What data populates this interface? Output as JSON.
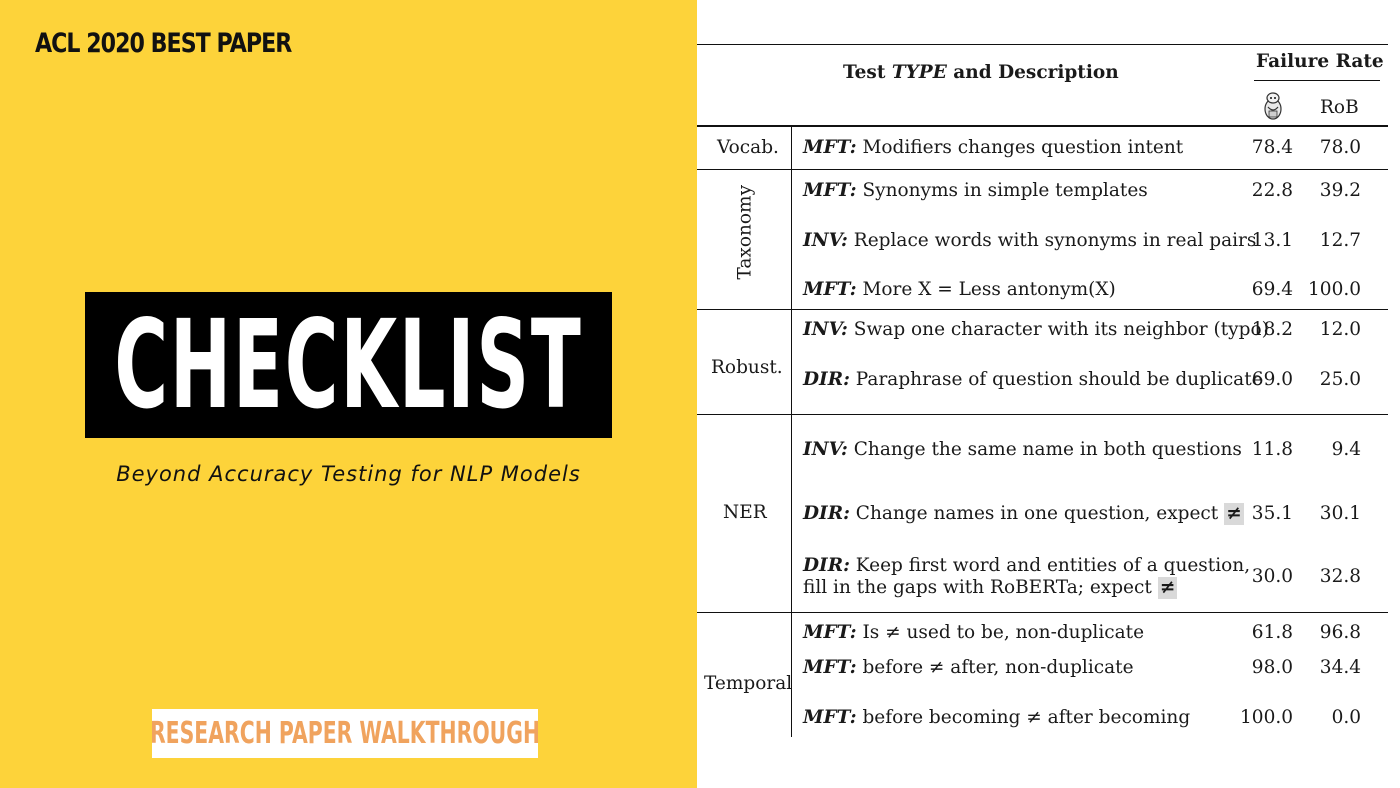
{
  "left": {
    "banner": "ACL 2020 BEST PAPER",
    "title": "CHECKLIST",
    "subtitle": "Beyond Accuracy Testing for NLP Models",
    "walkthrough": "RESEARCH PAPER WALKTHROUGH",
    "colors": {
      "background": "#fdd33a",
      "title_box": "#000000",
      "walkthrough_text": "#f0a35e"
    }
  },
  "table": {
    "header": {
      "test_prefix": "Test",
      "test_type": "TYPE",
      "test_suffix": "and Description",
      "failure_rate": "Failure Rate",
      "col1_icon": "bert-figure-icon",
      "col2": "RoB"
    },
    "groups": [
      {
        "label": "Vocab.",
        "rows": [
          {
            "tag": "MFT:",
            "desc": "Modifiers changes question intent",
            "v1": "78.4",
            "v2": "78.0"
          }
        ]
      },
      {
        "label": "Taxonomy",
        "rows": [
          {
            "tag": "MFT:",
            "desc": "Synonyms in simple templates",
            "v1": "22.8",
            "v2": "39.2"
          },
          {
            "tag": "INV:",
            "desc": "Replace words with synonyms in real pairs",
            "v1": "13.1",
            "v2": "12.7"
          },
          {
            "tag": "MFT:",
            "desc": "More X = Less antonym(X)",
            "v1": "69.4",
            "v2": "100.0"
          }
        ]
      },
      {
        "label": "Robust.",
        "rows": [
          {
            "tag": "INV:",
            "desc": "Swap one character with its neighbor (typo)",
            "v1": "18.2",
            "v2": "12.0"
          },
          {
            "tag": "DIR:",
            "desc": "Paraphrase of question should be duplicate",
            "v1": "69.0",
            "v2": "25.0"
          }
        ]
      },
      {
        "label": "NER",
        "rows": [
          {
            "tag": "INV:",
            "desc": "Change the same name in both questions",
            "v1": "11.8",
            "v2": "9.4"
          },
          {
            "tag": "DIR:",
            "desc": "Change names in one question, expect",
            "neq": "≠",
            "v1": "35.1",
            "v2": "30.1"
          },
          {
            "tag": "DIR:",
            "desc": "Keep first word and entities of a question,",
            "desc2": "fill in the gaps with RoBERTa; expect",
            "neq": "≠",
            "v1": "30.0",
            "v2": "32.8"
          }
        ]
      },
      {
        "label": "Temporal",
        "rows": [
          {
            "tag": "MFT:",
            "desc": "Is ≠ used to be, non-duplicate",
            "v1": "61.8",
            "v2": "96.8"
          },
          {
            "tag": "MFT:",
            "desc": "before ≠ after, non-duplicate",
            "v1": "98.0",
            "v2": "34.4"
          },
          {
            "tag": "MFT:",
            "desc": "before becoming ≠ after becoming",
            "v1": "100.0",
            "v2": "0.0"
          }
        ]
      }
    ]
  }
}
